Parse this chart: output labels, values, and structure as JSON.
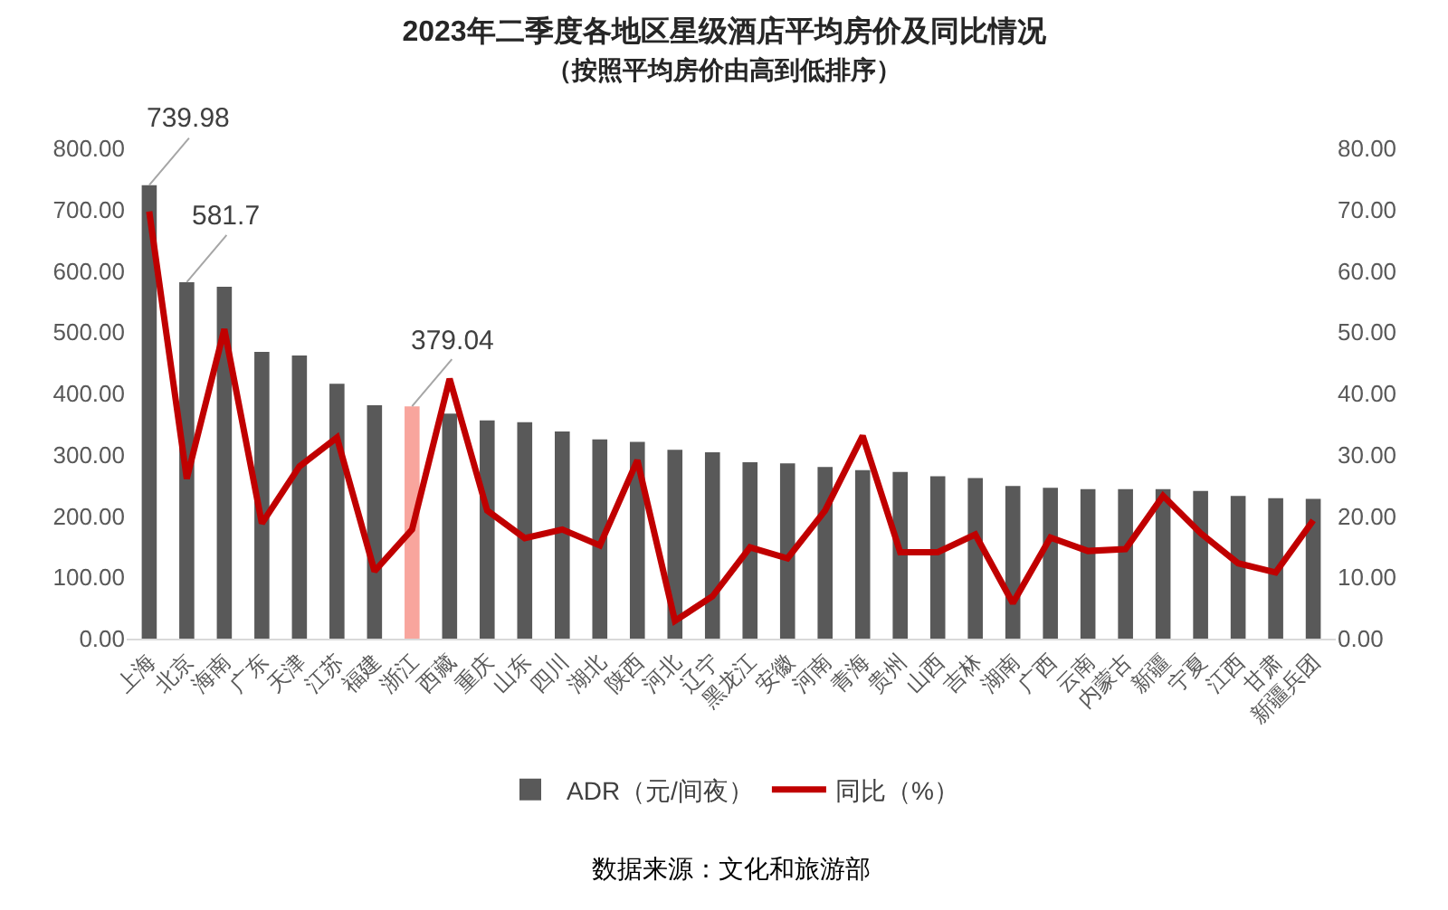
{
  "chart_data": {
    "type": "bar",
    "title": "2023年二季度各地区星级酒店平均房价及同比情况",
    "subtitle": "（按照平均房价由高到低排序）",
    "categories": [
      "上海",
      "北京",
      "海南",
      "广东",
      "天津",
      "江苏",
      "福建",
      "浙江",
      "西藏",
      "重庆",
      "山东",
      "四川",
      "湖北",
      "陕西",
      "河北",
      "辽宁",
      "黑龙江",
      "安徽",
      "河南",
      "青海",
      "贵州",
      "山西",
      "吉林",
      "湖南",
      "广西",
      "云南",
      "内蒙古",
      "新疆",
      "宁夏",
      "江西",
      "甘肃",
      "新疆兵团"
    ],
    "series": [
      {
        "name": "ADR（元/间夜）",
        "color": "#595959",
        "colors": [
          "#595959",
          "#595959",
          "#595959",
          "#595959",
          "#595959",
          "#595959",
          "#595959",
          "#f8a59d",
          "#595959",
          "#595959",
          "#595959",
          "#595959",
          "#595959",
          "#595959",
          "#595959",
          "#595959",
          "#595959",
          "#595959",
          "#595959",
          "#595959",
          "#595959",
          "#595959",
          "#595959",
          "#595959",
          "#595959",
          "#595959",
          "#595959",
          "#595959",
          "#595959",
          "#595959",
          "#595959",
          "#595959"
        ],
        "values": [
          739.98,
          581.7,
          574,
          468,
          462,
          416,
          381,
          379.04,
          367,
          356,
          353,
          338,
          325,
          321,
          308,
          304,
          288,
          286,
          280,
          275,
          272,
          265,
          262,
          249,
          246,
          244,
          244,
          244,
          241,
          233,
          229,
          228
        ],
        "value_labels": [
          "739.98",
          "581.7",
          null,
          null,
          null,
          null,
          null,
          "379.04",
          null,
          null,
          null,
          null,
          null,
          null,
          null,
          null,
          null,
          null,
          null,
          null,
          null,
          null,
          null,
          null,
          null,
          null,
          null,
          null,
          null,
          null,
          null,
          null
        ]
      },
      {
        "name": "同比（%）",
        "type": "line",
        "axis": "y2",
        "color": "#c00000",
        "values": [
          69.7,
          26.1,
          50.5,
          18.8,
          28.1,
          32.8,
          11.0,
          17.8,
          42.4,
          20.9,
          16.4,
          17.8,
          15.2,
          29.1,
          2.9,
          6.9,
          14.9,
          13.1,
          20.9,
          33.1,
          14.1,
          14.1,
          17.0,
          5.8,
          16.5,
          14.3,
          14.6,
          23.3,
          17.2,
          12.3,
          10.8,
          19.3
        ]
      }
    ],
    "ylim": [
      0,
      800
    ],
    "yticks": [
      {
        "value": 0,
        "label": "0.00"
      },
      {
        "value": 100,
        "label": "100.00"
      },
      {
        "value": 200,
        "label": "200.00"
      },
      {
        "value": 300,
        "label": "300.00"
      },
      {
        "value": 400,
        "label": "400.00"
      },
      {
        "value": 500,
        "label": "500.00"
      },
      {
        "value": 600,
        "label": "600.00"
      },
      {
        "value": 700,
        "label": "700.00"
      },
      {
        "value": 800,
        "label": "800.00"
      }
    ],
    "y2lim": [
      0,
      80
    ],
    "y2ticks": [
      {
        "value": 0,
        "label": "0.00"
      },
      {
        "value": 10,
        "label": "10.00"
      },
      {
        "value": 20,
        "label": "20.00"
      },
      {
        "value": 30,
        "label": "30.00"
      },
      {
        "value": 40,
        "label": "40.00"
      },
      {
        "value": 50,
        "label": "50.00"
      },
      {
        "value": 60,
        "label": "60.00"
      },
      {
        "value": 70,
        "label": "70.00"
      },
      {
        "value": 80,
        "label": "80.00"
      }
    ],
    "grid": false,
    "legend": "bottom",
    "marker": "none",
    "line_style": "solid",
    "annotations": [
      "数据来源：文化和旅游部"
    ]
  }
}
